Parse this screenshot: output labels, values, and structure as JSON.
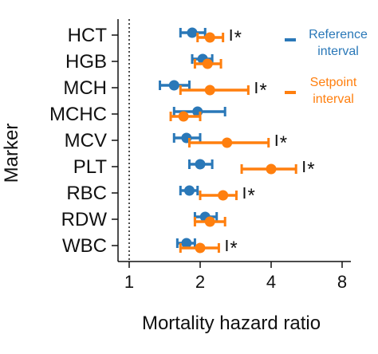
{
  "chart_data": {
    "type": "forest",
    "xlabel": "Mortality hazard ratio",
    "ylabel": "Marker",
    "xscale": "log2",
    "xlim": [
      0.95,
      8
    ],
    "xticks": [
      1,
      2,
      4,
      8
    ],
    "xtick_labels": [
      "1",
      "2",
      "4",
      "8"
    ],
    "reference_line": 1,
    "reference_line_style": "dotted",
    "categories": [
      "HCT",
      "HGB",
      "MCH",
      "MCHC",
      "MCV",
      "PLT",
      "RBC",
      "RDW",
      "WBC"
    ],
    "series": [
      {
        "name": "Reference interval",
        "color": "#2a78b8",
        "values": [
          1.85,
          2.05,
          1.55,
          1.95,
          1.75,
          2.0,
          1.8,
          2.1,
          1.75
        ],
        "ci_low": [
          1.65,
          1.85,
          1.35,
          1.55,
          1.55,
          1.8,
          1.65,
          1.9,
          1.6
        ],
        "ci_high": [
          2.1,
          2.25,
          1.8,
          2.55,
          2.0,
          2.25,
          1.95,
          2.35,
          1.9
        ]
      },
      {
        "name": "Setpoint interval",
        "color": "#ff7f0e",
        "values": [
          2.2,
          2.15,
          2.2,
          1.7,
          2.6,
          4.0,
          2.5,
          2.2,
          2.0
        ],
        "ci_low": [
          1.95,
          1.9,
          1.65,
          1.5,
          1.8,
          3.0,
          2.0,
          1.9,
          1.65
        ],
        "ci_high": [
          2.5,
          2.45,
          3.2,
          2.0,
          3.9,
          5.1,
          2.85,
          2.55,
          2.4
        ]
      }
    ],
    "significance": [
      {
        "category": "HCT",
        "label": "*"
      },
      {
        "category": "MCH",
        "label": "*"
      },
      {
        "category": "MCV",
        "label": "*"
      },
      {
        "category": "PLT",
        "label": "*"
      },
      {
        "category": "RBC",
        "label": "*"
      },
      {
        "category": "WBC",
        "label": "*"
      }
    ],
    "legend": {
      "placement": "top-right",
      "entries": [
        {
          "name": "Reference interval",
          "lines": [
            "Reference",
            "interval"
          ],
          "color": "#2a78b8"
        },
        {
          "name": "Setpoint interval",
          "lines": [
            "Setpoint",
            "interval"
          ],
          "color": "#ff7f0e"
        }
      ]
    },
    "grid": false
  }
}
